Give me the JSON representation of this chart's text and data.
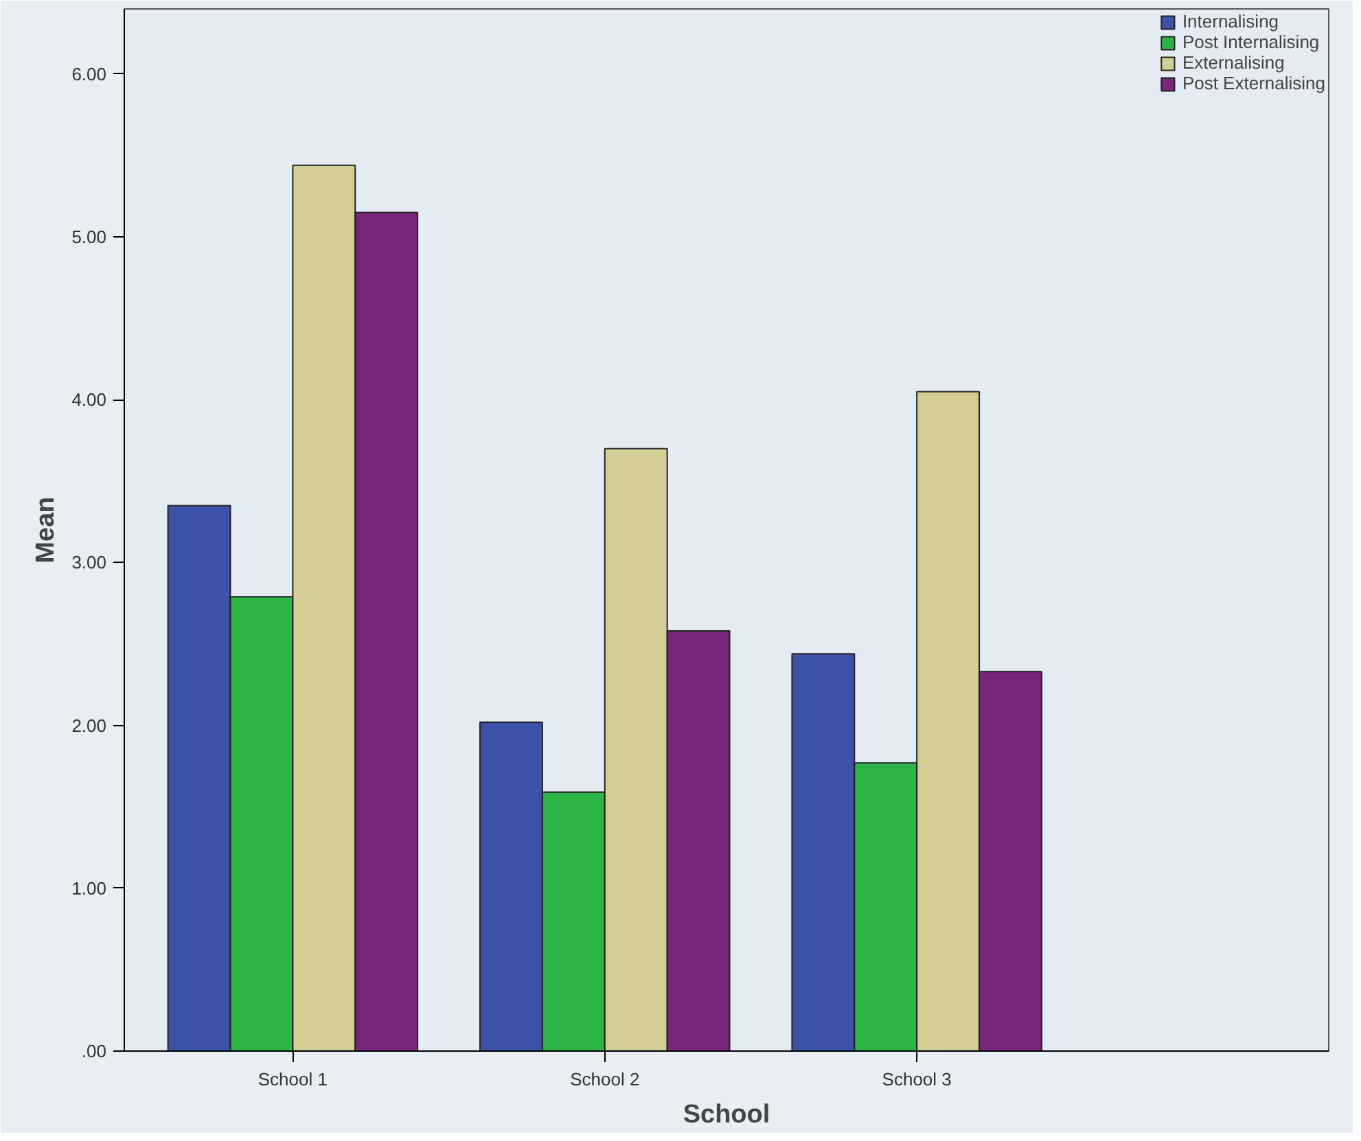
{
  "chart_data": {
    "type": "bar",
    "xlabel": "School",
    "ylabel": "Mean",
    "categories": [
      "School 1",
      "School 2",
      "School 3"
    ],
    "series": [
      {
        "name": "Internalising",
        "color": "#3c52a9",
        "values": [
          3.35,
          2.02,
          2.44
        ]
      },
      {
        "name": "Post Internalising",
        "color": "#2eb347",
        "values": [
          2.79,
          1.59,
          1.77
        ]
      },
      {
        "name": "Externalising",
        "color": "#d3ce96",
        "values": [
          5.44,
          3.7,
          4.05
        ]
      },
      {
        "name": "Post Externalising",
        "color": "#78267b",
        "values": [
          5.15,
          2.58,
          2.33
        ]
      }
    ],
    "ylim": [
      0,
      6.4
    ],
    "yticks": [
      {
        "value": 0,
        "label": ".00"
      },
      {
        "value": 1,
        "label": "1.00"
      },
      {
        "value": 2,
        "label": "2.00"
      },
      {
        "value": 3,
        "label": "3.00"
      },
      {
        "value": 4,
        "label": "4.00"
      },
      {
        "value": 5,
        "label": "5.00"
      },
      {
        "value": 6,
        "label": "6.00"
      }
    ],
    "grid": false,
    "legend": "top right"
  }
}
